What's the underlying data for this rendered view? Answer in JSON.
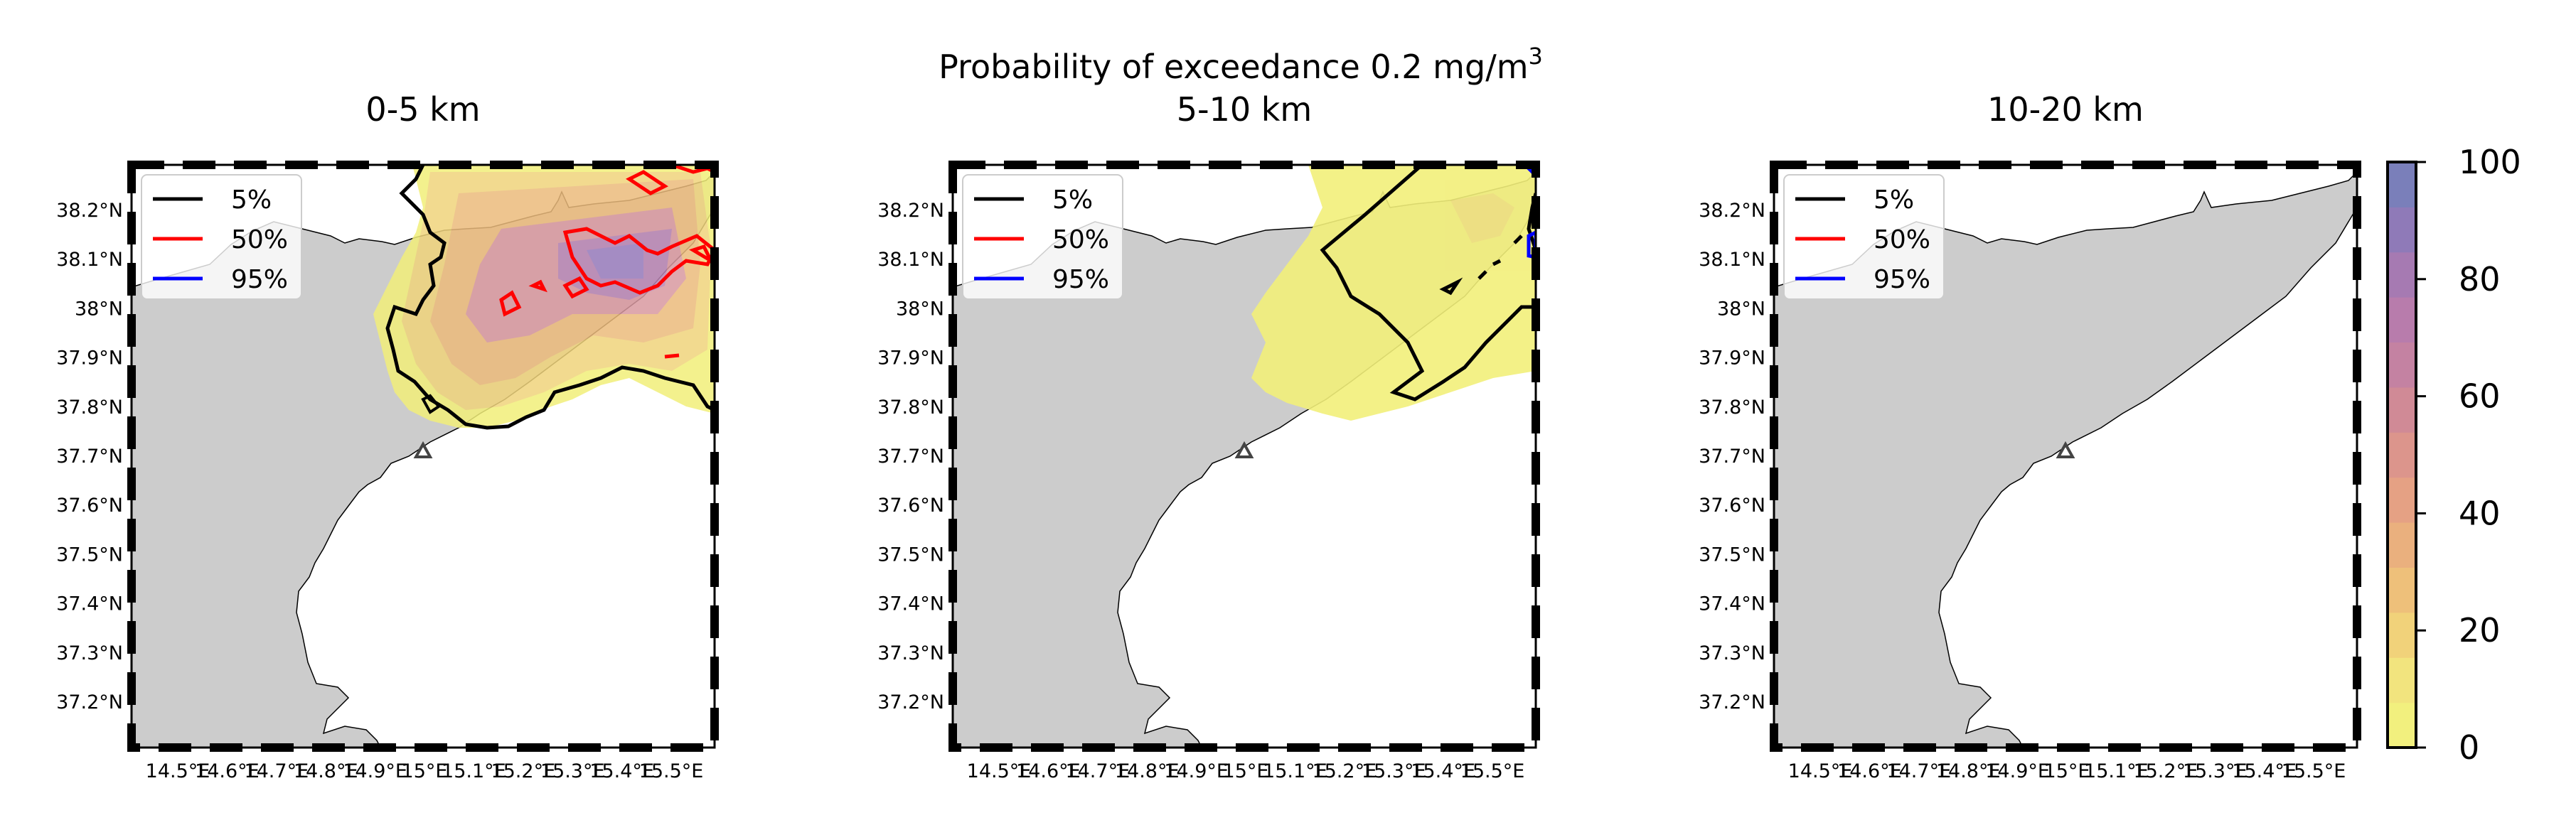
{
  "figure": {
    "title_main": "Probability of exceedance 0.2 mg/m",
    "title_sup": "3"
  },
  "panels": [
    {
      "title": "0-5 km"
    },
    {
      "title": "5-10 km"
    },
    {
      "title": "10-20 km"
    }
  ],
  "axes": {
    "yticks": [
      "38.2°N",
      "38.1°N",
      "38°N",
      "37.9°N",
      "37.8°N",
      "37.7°N",
      "37.6°N",
      "37.5°N",
      "37.4°N",
      "37.3°N",
      "37.2°N"
    ],
    "xticks": [
      "14.5°E",
      "14.6°E",
      "14.7°E",
      "14.8°E",
      "14.9°E",
      "15°E",
      "15.1°E",
      "15.2°E",
      "15.3°E",
      "15.4°E",
      "15.5°E"
    ]
  },
  "legend": [
    {
      "label": "5%",
      "color": "#000000"
    },
    {
      "label": "50%",
      "color": "#ff0000"
    },
    {
      "label": "95%",
      "color": "#0000ff"
    }
  ],
  "colorbar": {
    "ticks": [
      "0",
      "20",
      "40",
      "60",
      "80",
      "100"
    ],
    "colors": [
      "#f2f07e",
      "#f2e47e",
      "#f1d27a",
      "#eec07a",
      "#eab07e",
      "#e5a184",
      "#dc958c",
      "#d08a96",
      "#c482a2",
      "#b87cac",
      "#a67ab2",
      "#8f7ab8",
      "#7a7fba"
    ]
  },
  "markers": {
    "volcano": "triangle-icon"
  }
}
